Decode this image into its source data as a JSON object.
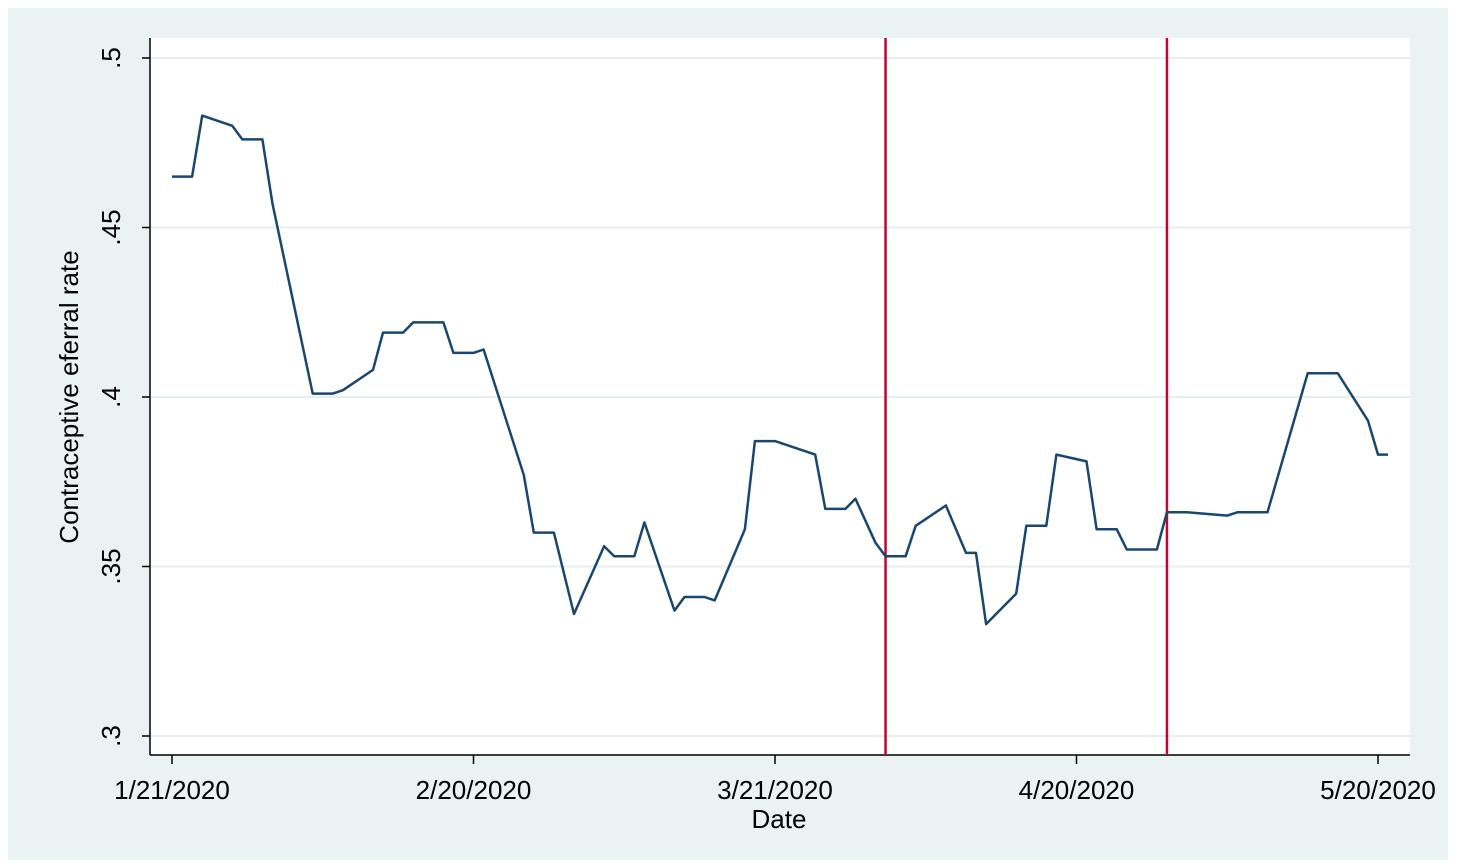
{
  "chart_data": {
    "type": "line",
    "title": "",
    "xlabel": "Date",
    "ylabel": "Contraceptive eferral rate",
    "x_tick_labels": [
      "1/21/2020",
      "2/20/2020",
      "3/21/2020",
      "4/20/2020",
      "5/20/2020"
    ],
    "y_tick_labels": [
      ".3",
      ".35",
      ".4",
      ".45",
      ".5"
    ],
    "xlim": [
      "2020-01-21",
      "2020-05-20"
    ],
    "ylim": [
      0.3,
      0.5
    ],
    "y_ticks": [
      0.3,
      0.35,
      0.4,
      0.45,
      0.5
    ],
    "grid": true,
    "line_color": "#1a476f",
    "reference_line_color": "#c10534",
    "reference_lines_x": [
      "2020-04-01",
      "2020-04-29"
    ],
    "series": [
      {
        "points": [
          [
            "2020-01-21",
            0.465
          ],
          [
            "2020-01-23",
            0.465
          ],
          [
            "2020-01-24",
            0.483
          ],
          [
            "2020-01-27",
            0.48
          ],
          [
            "2020-01-28",
            0.476
          ],
          [
            "2020-01-30",
            0.476
          ],
          [
            "2020-01-31",
            0.457
          ],
          [
            "2020-02-04",
            0.401
          ],
          [
            "2020-02-06",
            0.401
          ],
          [
            "2020-02-07",
            0.402
          ],
          [
            "2020-02-10",
            0.408
          ],
          [
            "2020-02-11",
            0.419
          ],
          [
            "2020-02-13",
            0.419
          ],
          [
            "2020-02-14",
            0.422
          ],
          [
            "2020-02-17",
            0.422
          ],
          [
            "2020-02-18",
            0.413
          ],
          [
            "2020-02-20",
            0.413
          ],
          [
            "2020-02-21",
            0.414
          ],
          [
            "2020-02-25",
            0.377
          ],
          [
            "2020-02-26",
            0.36
          ],
          [
            "2020-02-28",
            0.36
          ],
          [
            "2020-03-01",
            0.336
          ],
          [
            "2020-03-04",
            0.356
          ],
          [
            "2020-03-05",
            0.353
          ],
          [
            "2020-03-07",
            0.353
          ],
          [
            "2020-03-08",
            0.363
          ],
          [
            "2020-03-11",
            0.337
          ],
          [
            "2020-03-12",
            0.341
          ],
          [
            "2020-03-14",
            0.341
          ],
          [
            "2020-03-15",
            0.34
          ],
          [
            "2020-03-18",
            0.361
          ],
          [
            "2020-03-19",
            0.387
          ],
          [
            "2020-03-21",
            0.387
          ],
          [
            "2020-03-25",
            0.383
          ],
          [
            "2020-03-26",
            0.367
          ],
          [
            "2020-03-28",
            0.367
          ],
          [
            "2020-03-29",
            0.37
          ],
          [
            "2020-03-31",
            0.357
          ],
          [
            "2020-04-01",
            0.353
          ],
          [
            "2020-04-03",
            0.353
          ],
          [
            "2020-04-04",
            0.362
          ],
          [
            "2020-04-07",
            0.368
          ],
          [
            "2020-04-09",
            0.354
          ],
          [
            "2020-04-10",
            0.354
          ],
          [
            "2020-04-11",
            0.333
          ],
          [
            "2020-04-14",
            0.342
          ],
          [
            "2020-04-15",
            0.362
          ],
          [
            "2020-04-17",
            0.362
          ],
          [
            "2020-04-18",
            0.383
          ],
          [
            "2020-04-21",
            0.381
          ],
          [
            "2020-04-22",
            0.361
          ],
          [
            "2020-04-24",
            0.361
          ],
          [
            "2020-04-25",
            0.355
          ],
          [
            "2020-04-28",
            0.355
          ],
          [
            "2020-04-29",
            0.366
          ],
          [
            "2020-05-01",
            0.366
          ],
          [
            "2020-05-05",
            0.365
          ],
          [
            "2020-05-06",
            0.366
          ],
          [
            "2020-05-09",
            0.366
          ],
          [
            "2020-05-13",
            0.407
          ],
          [
            "2020-05-16",
            0.407
          ],
          [
            "2020-05-19",
            0.393
          ],
          [
            "2020-05-20",
            0.383
          ],
          [
            "2020-05-21",
            0.383
          ]
        ]
      }
    ]
  }
}
